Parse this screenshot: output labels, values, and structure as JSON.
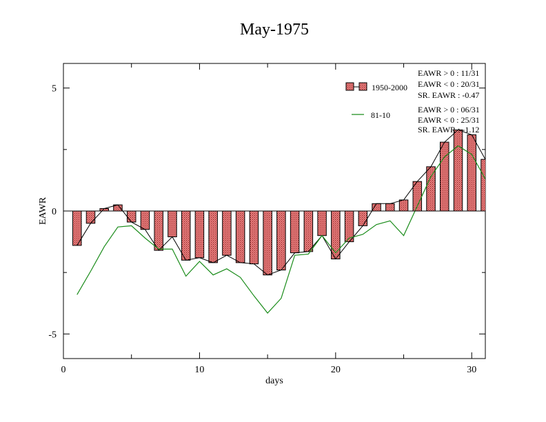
{
  "chart_data": {
    "type": "bar",
    "title": "May-1975",
    "xlabel": "days",
    "ylabel": "EAWR",
    "xlim": [
      0,
      31
    ],
    "ylim": [
      -6,
      6
    ],
    "x_ticks": [
      0,
      10,
      20,
      30
    ],
    "y_ticks": [
      -5,
      0,
      5
    ],
    "grid": false,
    "legend_position": "top-right",
    "x": [
      1,
      2,
      3,
      4,
      5,
      6,
      7,
      8,
      9,
      10,
      11,
      12,
      13,
      14,
      15,
      16,
      17,
      18,
      19,
      20,
      21,
      22,
      23,
      24,
      25,
      26,
      27,
      28,
      29,
      30,
      31
    ],
    "series": [
      {
        "name": "1950-2000",
        "kind": "bar",
        "values": [
          -1.4,
          -0.5,
          0.1,
          0.25,
          -0.45,
          -0.75,
          -1.6,
          -1.05,
          -2.0,
          -1.9,
          -2.1,
          -1.8,
          -2.1,
          -2.15,
          -2.6,
          -2.4,
          -1.7,
          -1.65,
          -1.0,
          -1.95,
          -1.25,
          -0.6,
          0.3,
          0.3,
          0.45,
          1.2,
          1.8,
          2.8,
          3.3,
          3.1,
          2.1
        ]
      },
      {
        "name": "81-10",
        "kind": "line",
        "values": [
          -3.4,
          -2.45,
          -1.45,
          -0.65,
          -0.6,
          -1.1,
          -1.55,
          -1.55,
          -2.65,
          -2.05,
          -2.6,
          -2.35,
          -2.7,
          -3.45,
          -4.15,
          -3.55,
          -1.8,
          -1.75,
          -1.0,
          -1.7,
          -1.1,
          -0.95,
          -0.55,
          -0.4,
          -1.0,
          0.2,
          1.4,
          2.2,
          2.65,
          2.3,
          1.3
        ]
      }
    ],
    "legend": [
      {
        "label": "1950-2000",
        "kind": "bar"
      },
      {
        "label": "81-10",
        "kind": "line"
      }
    ],
    "annotations": {
      "group1": [
        "EAWR > 0 : 11/31",
        "EAWR < 0 : 20/31",
        "SR. EAWR : -0.47"
      ],
      "group2": [
        "EAWR > 0 : 06/31",
        "EAWR < 0 : 25/31",
        "SR. EAWR : -1.12"
      ]
    },
    "colors": {
      "bar_fill": "#e88080",
      "bar_hatch": "#8b1a1a",
      "bar_stroke": "#000000",
      "line_81_10": "#1a8c1a",
      "bar_outline_line": "#000000"
    }
  }
}
